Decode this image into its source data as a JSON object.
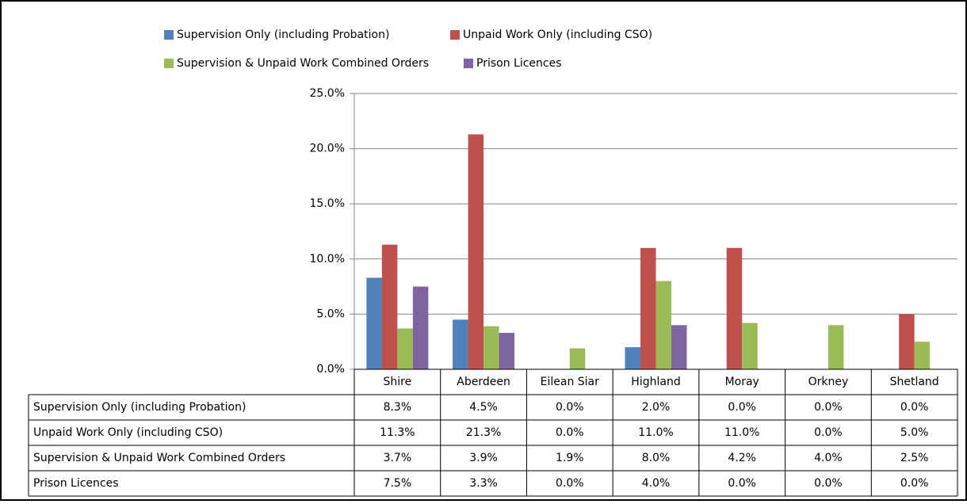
{
  "chart_data": {
    "type": "bar",
    "categories": [
      "Shire",
      "Aberdeen",
      "Eilean Siar",
      "Highland",
      "Moray",
      "Orkney",
      "Shetland"
    ],
    "series": [
      {
        "name": "Supervision Only (including Probation)",
        "color": "#4f81bd",
        "values": [
          8.3,
          4.5,
          0.0,
          2.0,
          0.0,
          0.0,
          0.0
        ],
        "value_labels": [
          "8.3%",
          "4.5%",
          "0.0%",
          "2.0%",
          "0.0%",
          "0.0%",
          "0.0%"
        ]
      },
      {
        "name": "Unpaid Work Only (including CSO)",
        "color": "#c0504d",
        "values": [
          11.3,
          21.3,
          0.0,
          11.0,
          11.0,
          0.0,
          5.0
        ],
        "value_labels": [
          "11.3%",
          "21.3%",
          "0.0%",
          "11.0%",
          "11.0%",
          "0.0%",
          "5.0%"
        ]
      },
      {
        "name": "Supervision & Unpaid Work Combined Orders",
        "color": "#9bbb59",
        "values": [
          3.7,
          3.9,
          1.9,
          8.0,
          4.2,
          4.0,
          2.5
        ],
        "value_labels": [
          "3.7%",
          "3.9%",
          "1.9%",
          "8.0%",
          "4.2%",
          "4.0%",
          "2.5%"
        ]
      },
      {
        "name": "Prison Licences",
        "color": "#8064a2",
        "values": [
          7.5,
          3.3,
          0.0,
          4.0,
          0.0,
          0.0,
          0.0
        ],
        "value_labels": [
          "7.5%",
          "3.3%",
          "0.0%",
          "4.0%",
          "0.0%",
          "0.0%",
          "0.0%"
        ]
      }
    ],
    "ylim": [
      0,
      25
    ],
    "yticks": [
      {
        "value": 0,
        "label": "0.0%"
      },
      {
        "value": 5,
        "label": "5.0%"
      },
      {
        "value": 10,
        "label": "10.0%"
      },
      {
        "value": 15,
        "label": "15.0%"
      },
      {
        "value": 20,
        "label": "20.0%"
      },
      {
        "value": 25,
        "label": "25.0%"
      }
    ],
    "grid": true,
    "legend": "top"
  }
}
